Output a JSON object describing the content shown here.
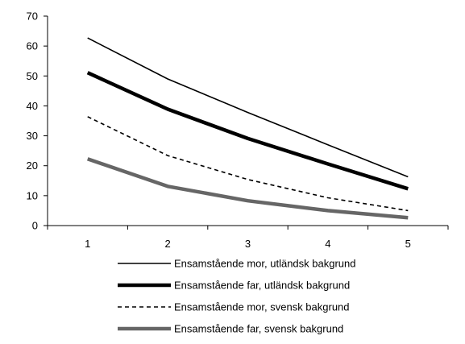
{
  "chart_data": {
    "type": "line",
    "title": "",
    "xlabel": "",
    "ylabel": "",
    "x": [
      1,
      2,
      3,
      4,
      5
    ],
    "x_tick_labels": [
      "1",
      "2",
      "3",
      "4",
      "5"
    ],
    "ylim": [
      0,
      70
    ],
    "y_ticks": [
      0,
      10,
      20,
      30,
      40,
      50,
      60,
      70
    ],
    "y_tick_labels": [
      "0",
      "10",
      "20",
      "30",
      "40",
      "50",
      "60",
      "70"
    ],
    "grid": false,
    "legend_position": "bottom",
    "series": [
      {
        "name": "Ensamstående mor, utländsk bakgrund",
        "values": [
          62.7,
          49.0,
          37.8,
          27.0,
          16.3
        ],
        "color": "#000000",
        "style": "thin-solid"
      },
      {
        "name": "Ensamstående far, utländsk bakgrund",
        "values": [
          51.1,
          38.9,
          29.1,
          20.6,
          12.3
        ],
        "color": "#000000",
        "style": "thick-solid"
      },
      {
        "name": "Ensamstående mor, svensk bakgrund",
        "values": [
          36.4,
          23.4,
          15.4,
          9.3,
          5.0
        ],
        "color": "#000000",
        "style": "dashed"
      },
      {
        "name": "Ensamstående far, svensk bakgrund",
        "values": [
          22.3,
          13.1,
          8.3,
          5.0,
          2.6
        ],
        "color": "#666666",
        "style": "thick-solid"
      }
    ]
  }
}
